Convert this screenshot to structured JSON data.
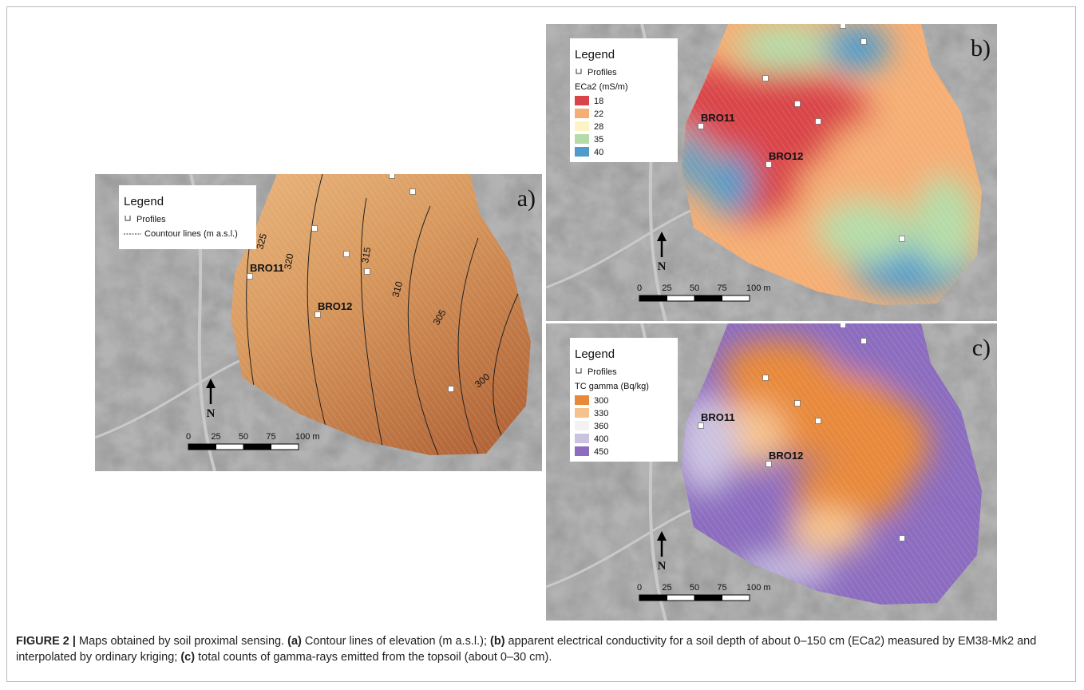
{
  "panels": [
    {
      "label": "a)",
      "legend": {
        "title": "Legend",
        "profiles": "Profiles",
        "lines": "Countour lines (m a.s.l.)"
      },
      "sites": [
        "BRO11",
        "BRO12"
      ],
      "contours": [
        "325",
        "320",
        "315",
        "310",
        "305",
        "300"
      ],
      "scale": [
        "0",
        "25",
        "50",
        "75",
        "100 m"
      ],
      "north": "N"
    },
    {
      "label": "b)",
      "legend": {
        "title": "Legend",
        "profiles": "Profiles",
        "classes_title": "ECa2 (mS/m)",
        "classes": [
          {
            "label": "18",
            "color": "#d9444a"
          },
          {
            "label": "22",
            "color": "#f5ae74"
          },
          {
            "label": "28",
            "color": "#fdf3c3"
          },
          {
            "label": "35",
            "color": "#b5dca8"
          },
          {
            "label": "40",
            "color": "#4f9bcb"
          }
        ]
      },
      "sites": [
        "BRO11",
        "BRO12"
      ],
      "scale": [
        "0",
        "25",
        "50",
        "75",
        "100 m"
      ],
      "north": "N"
    },
    {
      "label": "c)",
      "legend": {
        "title": "Legend",
        "profiles": "Profiles",
        "classes_title": "TC gamma (Bq/kg)",
        "classes": [
          {
            "label": "300",
            "color": "#e8893a"
          },
          {
            "label": "330",
            "color": "#f5c28e"
          },
          {
            "label": "360",
            "color": "#f4f1f3"
          },
          {
            "label": "400",
            "color": "#cbc2e0"
          },
          {
            "label": "450",
            "color": "#8b6cbf"
          }
        ]
      },
      "sites": [
        "BRO11",
        "BRO12"
      ],
      "scale": [
        "0",
        "25",
        "50",
        "75",
        "100 m"
      ],
      "north": "N"
    }
  ],
  "caption": {
    "parts": [
      {
        "text": "FIGURE 2 |",
        "bold": true
      },
      {
        "text": " Maps obtained by soil proximal sensing. ",
        "bold": false
      },
      {
        "text": "(a)",
        "bold": true
      },
      {
        "text": " Contour lines of elevation (m a.s.l.); ",
        "bold": false
      },
      {
        "text": "(b)",
        "bold": true
      },
      {
        "text": " apparent electrical conductivity for a soil depth of about 0–150 cm (ECa2) measured by EM38-Mk2 and interpolated by ordinary kriging; ",
        "bold": false
      },
      {
        "text": "(c)",
        "bold": true
      },
      {
        "text": " total counts of gamma-rays emitted from the topsoil (about 0–30 cm).",
        "bold": false
      }
    ]
  }
}
